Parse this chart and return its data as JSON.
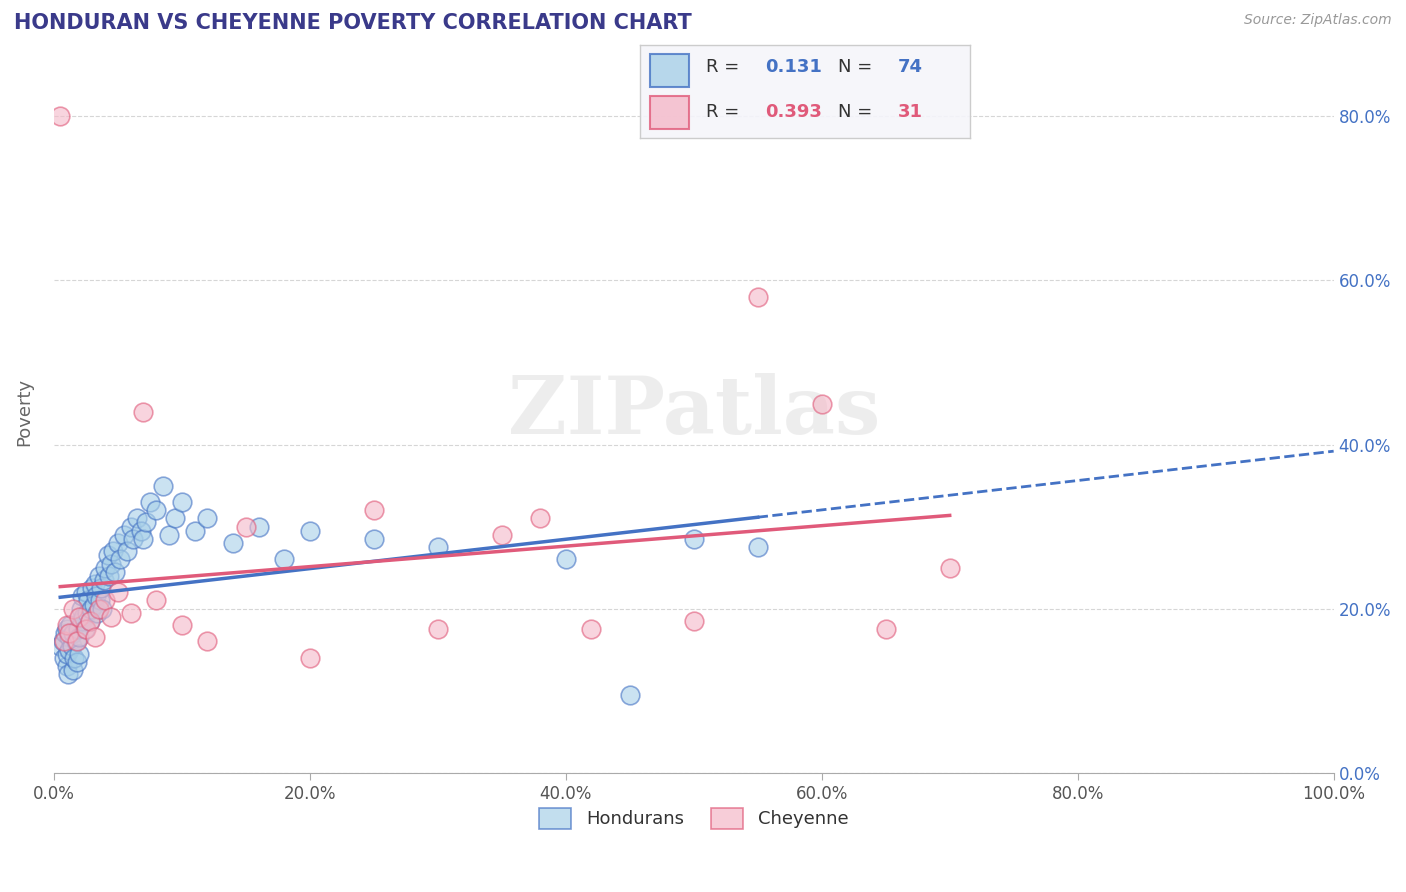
{
  "title": "HONDURAN VS CHEYENNE POVERTY CORRELATION CHART",
  "source_text": "Source: ZipAtlas.com",
  "ylabel": "Poverty",
  "blue_label": "Hondurans",
  "pink_label": "Cheyenne",
  "blue_R": 0.131,
  "blue_N": 74,
  "pink_R": 0.393,
  "pink_N": 31,
  "blue_color": "#a8d0e8",
  "pink_color": "#f4b8c8",
  "blue_line_color": "#4472c4",
  "pink_line_color": "#e05a7a",
  "background_color": "#ffffff",
  "xlim": [
    0,
    1.0
  ],
  "ylim": [
    0,
    0.88
  ],
  "yticks": [
    0.0,
    0.2,
    0.4,
    0.6,
    0.8
  ],
  "ytick_labels": [
    "0.0%",
    "20.0%",
    "40.0%",
    "60.0%",
    "80.0%"
  ],
  "xticks": [
    0.0,
    0.2,
    0.4,
    0.6,
    0.8,
    1.0
  ],
  "xtick_labels": [
    "0.0%",
    "20.0%",
    "40.0%",
    "60.0%",
    "80.0%",
    "100.0%"
  ],
  "blue_x": [
    0.005,
    0.007,
    0.008,
    0.009,
    0.01,
    0.01,
    0.01,
    0.011,
    0.012,
    0.012,
    0.013,
    0.014,
    0.015,
    0.015,
    0.016,
    0.017,
    0.018,
    0.019,
    0.02,
    0.02,
    0.021,
    0.022,
    0.022,
    0.023,
    0.024,
    0.025,
    0.026,
    0.027,
    0.028,
    0.029,
    0.03,
    0.031,
    0.032,
    0.033,
    0.034,
    0.035,
    0.036,
    0.037,
    0.038,
    0.039,
    0.04,
    0.042,
    0.043,
    0.045,
    0.046,
    0.048,
    0.05,
    0.052,
    0.055,
    0.057,
    0.06,
    0.062,
    0.065,
    0.068,
    0.07,
    0.072,
    0.075,
    0.08,
    0.085,
    0.09,
    0.095,
    0.1,
    0.11,
    0.12,
    0.14,
    0.16,
    0.18,
    0.2,
    0.25,
    0.3,
    0.4,
    0.5,
    0.55,
    0.45
  ],
  "blue_y": [
    0.155,
    0.16,
    0.14,
    0.17,
    0.13,
    0.145,
    0.175,
    0.12,
    0.165,
    0.15,
    0.18,
    0.155,
    0.125,
    0.17,
    0.14,
    0.16,
    0.135,
    0.175,
    0.145,
    0.165,
    0.2,
    0.185,
    0.215,
    0.19,
    0.175,
    0.22,
    0.195,
    0.21,
    0.185,
    0.2,
    0.225,
    0.205,
    0.23,
    0.215,
    0.195,
    0.24,
    0.21,
    0.225,
    0.2,
    0.235,
    0.25,
    0.265,
    0.24,
    0.255,
    0.27,
    0.245,
    0.28,
    0.26,
    0.29,
    0.27,
    0.3,
    0.285,
    0.31,
    0.295,
    0.285,
    0.305,
    0.33,
    0.32,
    0.35,
    0.29,
    0.31,
    0.33,
    0.295,
    0.31,
    0.28,
    0.3,
    0.26,
    0.295,
    0.285,
    0.275,
    0.26,
    0.285,
    0.275,
    0.095
  ],
  "pink_x": [
    0.005,
    0.008,
    0.01,
    0.012,
    0.015,
    0.018,
    0.02,
    0.025,
    0.028,
    0.032,
    0.035,
    0.04,
    0.045,
    0.05,
    0.06,
    0.07,
    0.08,
    0.1,
    0.12,
    0.15,
    0.2,
    0.25,
    0.3,
    0.35,
    0.38,
    0.42,
    0.5,
    0.55,
    0.6,
    0.65,
    0.7
  ],
  "pink_y": [
    0.8,
    0.16,
    0.18,
    0.17,
    0.2,
    0.16,
    0.19,
    0.175,
    0.185,
    0.165,
    0.2,
    0.21,
    0.19,
    0.22,
    0.195,
    0.44,
    0.21,
    0.18,
    0.16,
    0.3,
    0.14,
    0.32,
    0.175,
    0.29,
    0.31,
    0.175,
    0.185,
    0.58,
    0.45,
    0.175,
    0.25
  ]
}
